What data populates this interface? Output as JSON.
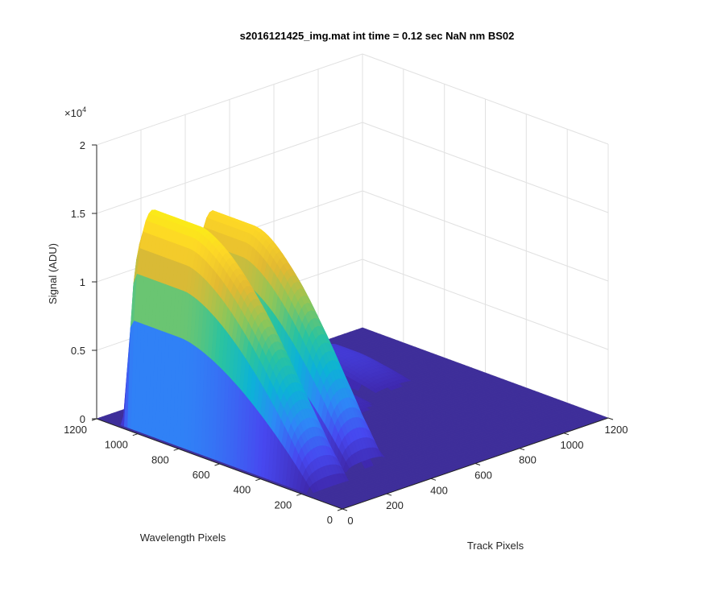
{
  "chart_data": {
    "type": "surface",
    "title": "s2016121425_img.mat int time = 0.12 sec  NaN nm BS02",
    "xlabel": "Track Pixels",
    "ylabel": "Wavelength Pixels",
    "zlabel": "Signal (ADU)",
    "z_exponent_label": "×10",
    "z_exponent_power": "4",
    "xlim": [
      0,
      1200
    ],
    "ylim": [
      0,
      1200
    ],
    "zlim": [
      0,
      20000
    ],
    "x_ticks": [
      0,
      200,
      400,
      600,
      800,
      1000,
      1200
    ],
    "x_tick_labels": [
      "0",
      "200",
      "400",
      "600",
      "800",
      "1000",
      "1200"
    ],
    "y_ticks": [
      0,
      200,
      400,
      600,
      800,
      1000,
      1200
    ],
    "y_tick_labels": [
      "0",
      "200",
      "400",
      "600",
      "800",
      "1000",
      "1200"
    ],
    "z_ticks": [
      0,
      5000,
      10000,
      15000,
      20000
    ],
    "z_tick_labels": [
      "0",
      "0.5",
      "1",
      "1.5",
      "2"
    ],
    "grid": true,
    "colormap": [
      "#3e26a8",
      "#4748f0",
      "#2e87f7",
      "#0cb2d7",
      "#2ac3a0",
      "#8dc659",
      "#e2b932",
      "#fdd726",
      "#f9fb0e"
    ],
    "surface_color": "#3f2f9a",
    "peaks": [
      {
        "track_center": 110,
        "track_halfwidth": 90,
        "wavelength_top": 1060,
        "wavelength_bottom": 250,
        "peak_signal": 15500
      },
      {
        "track_center": 330,
        "track_halfwidth": 85,
        "wavelength_top": 1000,
        "wavelength_bottom": 300,
        "peak_signal": 14500
      },
      {
        "track_center": 660,
        "track_halfwidth": 70,
        "wavelength_top": 1000,
        "wavelength_bottom": 600,
        "peak_signal": 900
      },
      {
        "track_center": 880,
        "track_halfwidth": 90,
        "wavelength_top": 1050,
        "wavelength_bottom": 700,
        "peak_signal": 1300
      }
    ]
  }
}
